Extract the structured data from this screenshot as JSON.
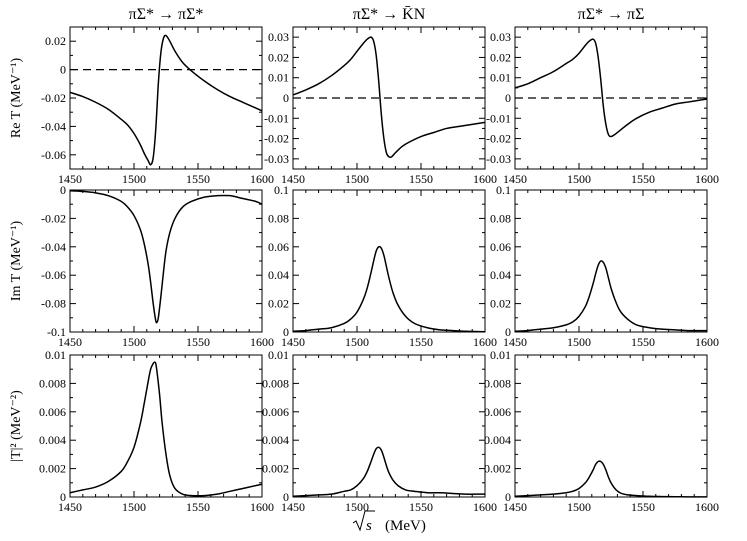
{
  "figure": {
    "xlabel": "(MeV)",
    "sqrt_label": "s"
  },
  "columns": [
    {
      "title": "πΣ* → πΣ*"
    },
    {
      "title": "πΣ* → K̄N"
    },
    {
      "title": "πΣ* → πΣ"
    }
  ],
  "rows": [
    {
      "ylabel": "Re T  (MeV⁻¹)"
    },
    {
      "ylabel": "Im T  (MeV⁻¹)"
    },
    {
      "ylabel": "|T|²  (MeV⁻²)"
    }
  ],
  "chart_data": [
    {
      "type": "line",
      "id": "re-ps-ps",
      "row": 0,
      "col": 0,
      "title": "πΣ* → πΣ*",
      "ylabel": "Re T (MeV⁻¹)",
      "xlabel": "√s (MeV)",
      "xlim": [
        1450,
        1600
      ],
      "ylim": [
        -0.07,
        0.03
      ],
      "xticks": [
        1450,
        1500,
        1550,
        1600
      ],
      "yticks": [
        -0.06,
        -0.04,
        -0.02,
        0,
        0.02
      ],
      "ytick_labels": [
        "-0.06",
        "-0.04",
        "-0.02",
        "0",
        "0.02"
      ],
      "zero_line": true,
      "x": [
        1450,
        1460,
        1470,
        1480,
        1490,
        1495,
        1500,
        1505,
        1508,
        1511,
        1513,
        1515,
        1517,
        1519,
        1521,
        1523,
        1525,
        1528,
        1532,
        1538,
        1545,
        1555,
        1565,
        1575,
        1585,
        1595,
        1600
      ],
      "y": [
        -0.016,
        -0.019,
        -0.023,
        -0.028,
        -0.035,
        -0.039,
        -0.045,
        -0.053,
        -0.059,
        -0.064,
        -0.067,
        -0.062,
        -0.042,
        -0.01,
        0.012,
        0.022,
        0.024,
        0.02,
        0.013,
        0.005,
        -0.001,
        -0.008,
        -0.014,
        -0.019,
        -0.023,
        -0.027,
        -0.029
      ]
    },
    {
      "type": "line",
      "id": "re-ps-kn",
      "row": 0,
      "col": 1,
      "title": "πΣ* → K̄N",
      "ylabel": "Re T (MeV⁻¹)",
      "xlabel": "√s (MeV)",
      "xlim": [
        1450,
        1600
      ],
      "ylim": [
        -0.035,
        0.035
      ],
      "xticks": [
        1450,
        1500,
        1550,
        1600
      ],
      "yticks": [
        -0.03,
        -0.02,
        -0.01,
        0,
        0.01,
        0.02,
        0.03
      ],
      "ytick_labels": [
        "-0.03",
        "-0.02",
        "-0.01",
        "0",
        "0.01",
        "0.02",
        "0.03"
      ],
      "zero_line": true,
      "x": [
        1450,
        1460,
        1470,
        1480,
        1490,
        1495,
        1500,
        1505,
        1508,
        1511,
        1513,
        1515,
        1517,
        1519,
        1521,
        1523,
        1525,
        1527,
        1530,
        1535,
        1540,
        1550,
        1560,
        1570,
        1580,
        1590,
        1600
      ],
      "y": [
        0.0015,
        0.004,
        0.007,
        0.011,
        0.016,
        0.019,
        0.023,
        0.027,
        0.029,
        0.03,
        0.028,
        0.021,
        0.008,
        -0.008,
        -0.02,
        -0.027,
        -0.029,
        -0.029,
        -0.027,
        -0.024,
        -0.022,
        -0.019,
        -0.017,
        -0.015,
        -0.014,
        -0.013,
        -0.012
      ]
    },
    {
      "type": "line",
      "id": "re-ps-p",
      "row": 0,
      "col": 2,
      "title": "πΣ* → πΣ",
      "ylabel": "Re T (MeV⁻¹)",
      "xlabel": "√s (MeV)",
      "xlim": [
        1450,
        1600
      ],
      "ylim": [
        -0.035,
        0.035
      ],
      "xticks": [
        1450,
        1500,
        1550,
        1600
      ],
      "yticks": [
        -0.03,
        -0.02,
        -0.01,
        0,
        0.01,
        0.02,
        0.03
      ],
      "ytick_labels": [
        "-0.03",
        "-0.02",
        "-0.01",
        "0",
        "0.01",
        "0.02",
        "0.03"
      ],
      "zero_line": true,
      "x": [
        1450,
        1460,
        1470,
        1480,
        1490,
        1495,
        1500,
        1505,
        1508,
        1511,
        1513,
        1515,
        1517,
        1519,
        1521,
        1523,
        1525,
        1528,
        1532,
        1538,
        1545,
        1555,
        1565,
        1575,
        1585,
        1595,
        1600
      ],
      "y": [
        0.005,
        0.007,
        0.01,
        0.013,
        0.017,
        0.019,
        0.022,
        0.026,
        0.028,
        0.029,
        0.027,
        0.02,
        0.009,
        -0.004,
        -0.013,
        -0.018,
        -0.019,
        -0.018,
        -0.016,
        -0.013,
        -0.01,
        -0.007,
        -0.005,
        -0.003,
        -0.002,
        -0.001,
        -0.0005
      ]
    },
    {
      "type": "line",
      "id": "im-ps-ps",
      "row": 1,
      "col": 0,
      "title": "πΣ* → πΣ*",
      "ylabel": "Im T (MeV⁻¹)",
      "xlabel": "√s (MeV)",
      "xlim": [
        1450,
        1600
      ],
      "ylim": [
        -0.1,
        0
      ],
      "xticks": [
        1450,
        1500,
        1550,
        1600
      ],
      "yticks": [
        -0.1,
        -0.08,
        -0.06,
        -0.04,
        -0.02,
        0
      ],
      "ytick_labels": [
        "-0.1",
        "-0.08",
        "-0.06",
        "-0.04",
        "-0.02",
        "0"
      ],
      "zero_line": false,
      "x": [
        1450,
        1460,
        1470,
        1480,
        1490,
        1495,
        1500,
        1505,
        1508,
        1511,
        1513,
        1515,
        1517,
        1518,
        1519,
        1521,
        1523,
        1525,
        1528,
        1532,
        1538,
        1545,
        1555,
        1565,
        1575,
        1585,
        1595,
        1600
      ],
      "y": [
        -0.0005,
        -0.001,
        -0.002,
        -0.004,
        -0.008,
        -0.012,
        -0.018,
        -0.028,
        -0.038,
        -0.052,
        -0.065,
        -0.08,
        -0.092,
        -0.093,
        -0.09,
        -0.075,
        -0.058,
        -0.043,
        -0.03,
        -0.02,
        -0.012,
        -0.008,
        -0.005,
        -0.004,
        -0.004,
        -0.006,
        -0.008,
        -0.01
      ]
    },
    {
      "type": "line",
      "id": "im-ps-kn",
      "row": 1,
      "col": 1,
      "title": "πΣ* → K̄N",
      "ylabel": "Im T (MeV⁻¹)",
      "xlabel": "√s (MeV)",
      "xlim": [
        1450,
        1600
      ],
      "ylim": [
        0,
        0.1
      ],
      "xticks": [
        1450,
        1500,
        1550,
        1600
      ],
      "yticks": [
        0,
        0.02,
        0.04,
        0.06,
        0.08,
        0.1
      ],
      "ytick_labels": [
        "0",
        "0.02",
        "0.04",
        "0.06",
        "0.08",
        "0.1"
      ],
      "zero_line": false,
      "x": [
        1450,
        1460,
        1470,
        1480,
        1490,
        1495,
        1500,
        1505,
        1508,
        1511,
        1513,
        1515,
        1517,
        1519,
        1521,
        1523,
        1525,
        1528,
        1532,
        1538,
        1545,
        1555,
        1565,
        1575,
        1585,
        1595,
        1600
      ],
      "y": [
        0.0005,
        0.001,
        0.002,
        0.003,
        0.006,
        0.009,
        0.014,
        0.023,
        0.031,
        0.042,
        0.05,
        0.057,
        0.06,
        0.059,
        0.054,
        0.046,
        0.038,
        0.028,
        0.019,
        0.011,
        0.006,
        0.003,
        0.0015,
        0.001,
        0.0005,
        0.0003,
        0.0002
      ]
    },
    {
      "type": "line",
      "id": "im-ps-p",
      "row": 1,
      "col": 2,
      "title": "πΣ* → πΣ",
      "ylabel": "Im T (MeV⁻¹)",
      "xlabel": "√s (MeV)",
      "xlim": [
        1450,
        1600
      ],
      "ylim": [
        0,
        0.1
      ],
      "xticks": [
        1450,
        1500,
        1550,
        1600
      ],
      "yticks": [
        0,
        0.02,
        0.04,
        0.06,
        0.08,
        0.1
      ],
      "ytick_labels": [
        "0",
        "0.02",
        "0.04",
        "0.06",
        "0.08",
        "0.1"
      ],
      "zero_line": false,
      "x": [
        1450,
        1460,
        1470,
        1480,
        1490,
        1495,
        1500,
        1505,
        1508,
        1511,
        1513,
        1515,
        1517,
        1519,
        1521,
        1523,
        1525,
        1528,
        1532,
        1538,
        1545,
        1555,
        1565,
        1575,
        1585,
        1595,
        1600
      ],
      "y": [
        0.0005,
        0.001,
        0.002,
        0.003,
        0.005,
        0.007,
        0.011,
        0.018,
        0.025,
        0.034,
        0.041,
        0.047,
        0.05,
        0.049,
        0.045,
        0.038,
        0.031,
        0.023,
        0.015,
        0.009,
        0.005,
        0.003,
        0.002,
        0.0015,
        0.001,
        0.001,
        0.001
      ]
    },
    {
      "type": "line",
      "id": "abs-ps-ps",
      "row": 2,
      "col": 0,
      "title": "πΣ* → πΣ*",
      "ylabel": "|T|² (MeV⁻²)",
      "xlabel": "√s (MeV)",
      "xlim": [
        1450,
        1600
      ],
      "ylim": [
        0,
        0.01
      ],
      "xticks": [
        1450,
        1500,
        1550,
        1600
      ],
      "yticks": [
        0,
        0.002,
        0.004,
        0.006,
        0.008,
        0.01
      ],
      "ytick_labels": [
        "0",
        "0.002",
        "0.004",
        "0.006",
        "0.008",
        "0.01"
      ],
      "zero_line": false,
      "x": [
        1450,
        1460,
        1470,
        1480,
        1490,
        1495,
        1500,
        1505,
        1508,
        1511,
        1513,
        1515,
        1516,
        1517,
        1518,
        1520,
        1522,
        1525,
        1528,
        1532,
        1538,
        1545,
        1555,
        1565,
        1575,
        1585,
        1595,
        1600
      ],
      "y": [
        0.0003,
        0.0005,
        0.0007,
        0.0011,
        0.0018,
        0.0025,
        0.0035,
        0.0052,
        0.0066,
        0.0081,
        0.009,
        0.0094,
        0.0095,
        0.0094,
        0.0088,
        0.0072,
        0.0052,
        0.003,
        0.0015,
        0.0006,
        0.0002,
        0.0001,
        0.0001,
        0.0002,
        0.0004,
        0.0006,
        0.0008,
        0.0009
      ]
    },
    {
      "type": "line",
      "id": "abs-ps-kn",
      "row": 2,
      "col": 1,
      "title": "πΣ* → K̄N",
      "ylabel": "|T|² (MeV⁻²)",
      "xlabel": "√s (MeV)",
      "xlim": [
        1450,
        1600
      ],
      "ylim": [
        0,
        0.01
      ],
      "xticks": [
        1450,
        1500,
        1550,
        1600
      ],
      "yticks": [
        0,
        0.002,
        0.004,
        0.006,
        0.008,
        0.01
      ],
      "ytick_labels": [
        "0",
        "0.002",
        "0.004",
        "0.006",
        "0.008",
        "0.01"
      ],
      "zero_line": false,
      "x": [
        1450,
        1460,
        1470,
        1480,
        1490,
        1495,
        1500,
        1505,
        1508,
        1511,
        1513,
        1515,
        1517,
        1519,
        1521,
        1523,
        1525,
        1528,
        1532,
        1538,
        1545,
        1555,
        1565,
        1575,
        1585,
        1595,
        1600
      ],
      "y": [
        5e-05,
        0.0001,
        0.00015,
        0.0002,
        0.0004,
        0.0005,
        0.0008,
        0.0013,
        0.0018,
        0.0025,
        0.003,
        0.0034,
        0.0035,
        0.0033,
        0.0028,
        0.0022,
        0.0017,
        0.0012,
        0.0008,
        0.0005,
        0.0004,
        0.0003,
        0.0003,
        0.00025,
        0.0002,
        0.0002,
        0.0002
      ]
    },
    {
      "type": "line",
      "id": "abs-ps-p",
      "row": 2,
      "col": 2,
      "title": "πΣ* → πΣ",
      "ylabel": "|T|² (MeV⁻²)",
      "xlabel": "√s (MeV)",
      "xlim": [
        1450,
        1600
      ],
      "ylim": [
        0,
        0.01
      ],
      "xticks": [
        1450,
        1500,
        1550,
        1600
      ],
      "yticks": [
        0,
        0.002,
        0.004,
        0.006,
        0.008,
        0.01
      ],
      "ytick_labels": [
        "0",
        "0.002",
        "0.004",
        "0.006",
        "0.008",
        "0.01"
      ],
      "zero_line": false,
      "x": [
        1450,
        1460,
        1470,
        1480,
        1490,
        1495,
        1500,
        1505,
        1508,
        1511,
        1513,
        1515,
        1517,
        1519,
        1521,
        1523,
        1525,
        1528,
        1532,
        1538,
        1545,
        1555,
        1565,
        1575,
        1585,
        1595,
        1600
      ],
      "y": [
        5e-05,
        0.0001,
        0.00015,
        0.0002,
        0.0003,
        0.0004,
        0.0006,
        0.001,
        0.0014,
        0.0019,
        0.0023,
        0.0025,
        0.0025,
        0.0023,
        0.0019,
        0.0014,
        0.001,
        0.0006,
        0.0003,
        0.00015,
        0.0001,
        5e-05,
        3e-05,
        2e-05,
        1e-05,
        1e-05,
        1e-05
      ]
    }
  ]
}
